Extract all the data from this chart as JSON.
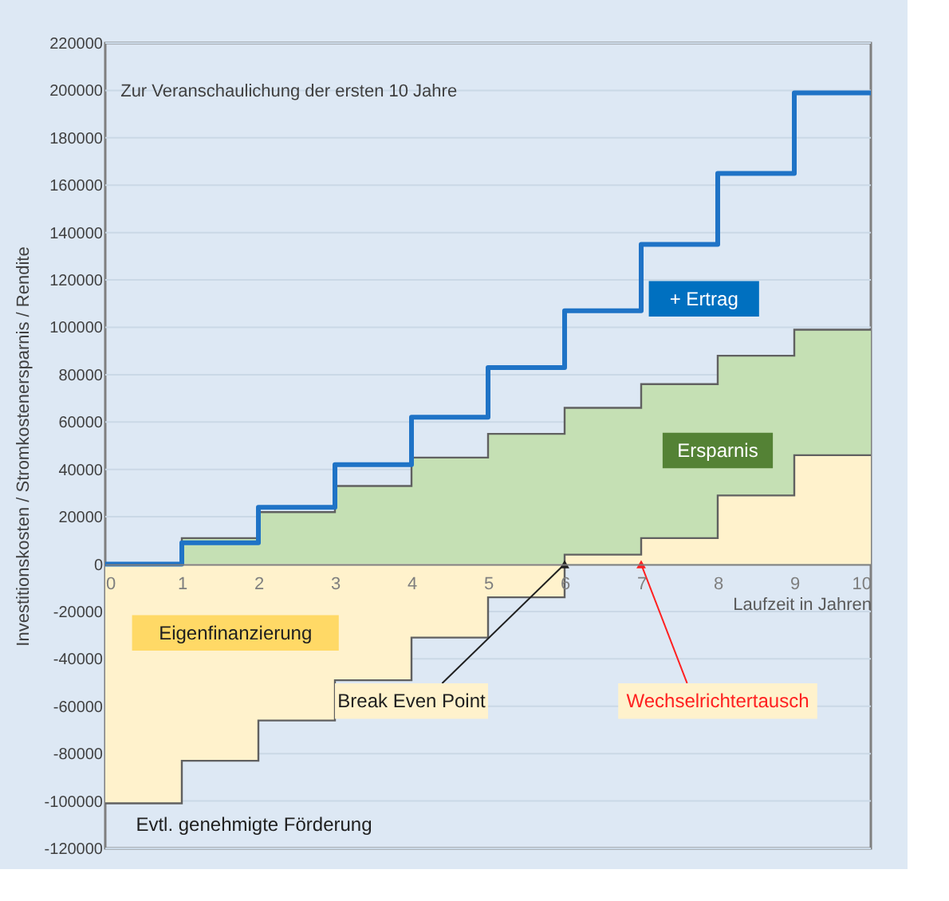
{
  "chart_data": {
    "type": "step",
    "xlabel": "Laufzeit in Jahren",
    "ylabel": "Investitionskosten / Stromkostenersparnis / Rendite",
    "x": [
      0,
      1,
      2,
      3,
      4,
      5,
      6,
      7,
      8,
      9,
      10
    ],
    "series": [
      {
        "name": "Ersparnis",
        "type": "area",
        "color": "#c5e0b4",
        "values": [
          0,
          11000,
          22000,
          33000,
          45000,
          55000,
          66000,
          76000,
          88000,
          99000,
          99000
        ]
      },
      {
        "name": "Eigenfinanzierung",
        "type": "area",
        "color": "#fff2cc",
        "values": [
          -101000,
          -83000,
          -66000,
          -49000,
          -31000,
          -14000,
          4000,
          11000,
          29000,
          46000,
          46000
        ]
      },
      {
        "name": "+ Ertrag",
        "type": "step",
        "color": "#1f73c6",
        "values": [
          0,
          9000,
          24000,
          42000,
          62000,
          83000,
          107000,
          135000,
          165000,
          199000,
          199000
        ]
      }
    ],
    "xlim": [
      0,
      10
    ],
    "xticks": [
      0,
      1,
      2,
      3,
      4,
      5,
      6,
      7,
      8,
      9,
      10
    ],
    "ylim": [
      -120000,
      220000
    ],
    "yticks": [
      -120000,
      -100000,
      -80000,
      -60000,
      -40000,
      -20000,
      0,
      20000,
      40000,
      60000,
      80000,
      100000,
      120000,
      140000,
      160000,
      180000,
      200000,
      220000
    ],
    "grid": "y",
    "annotations": [
      "Zur Veranschaulichung der ersten 10 Jahre",
      {
        "text": "Break Even Point",
        "x": 6,
        "y": 0
      },
      {
        "text": "Wechselrichtertausch",
        "x": 7,
        "y": 0
      },
      "Evtl. genehmigte Förderung"
    ]
  }
}
